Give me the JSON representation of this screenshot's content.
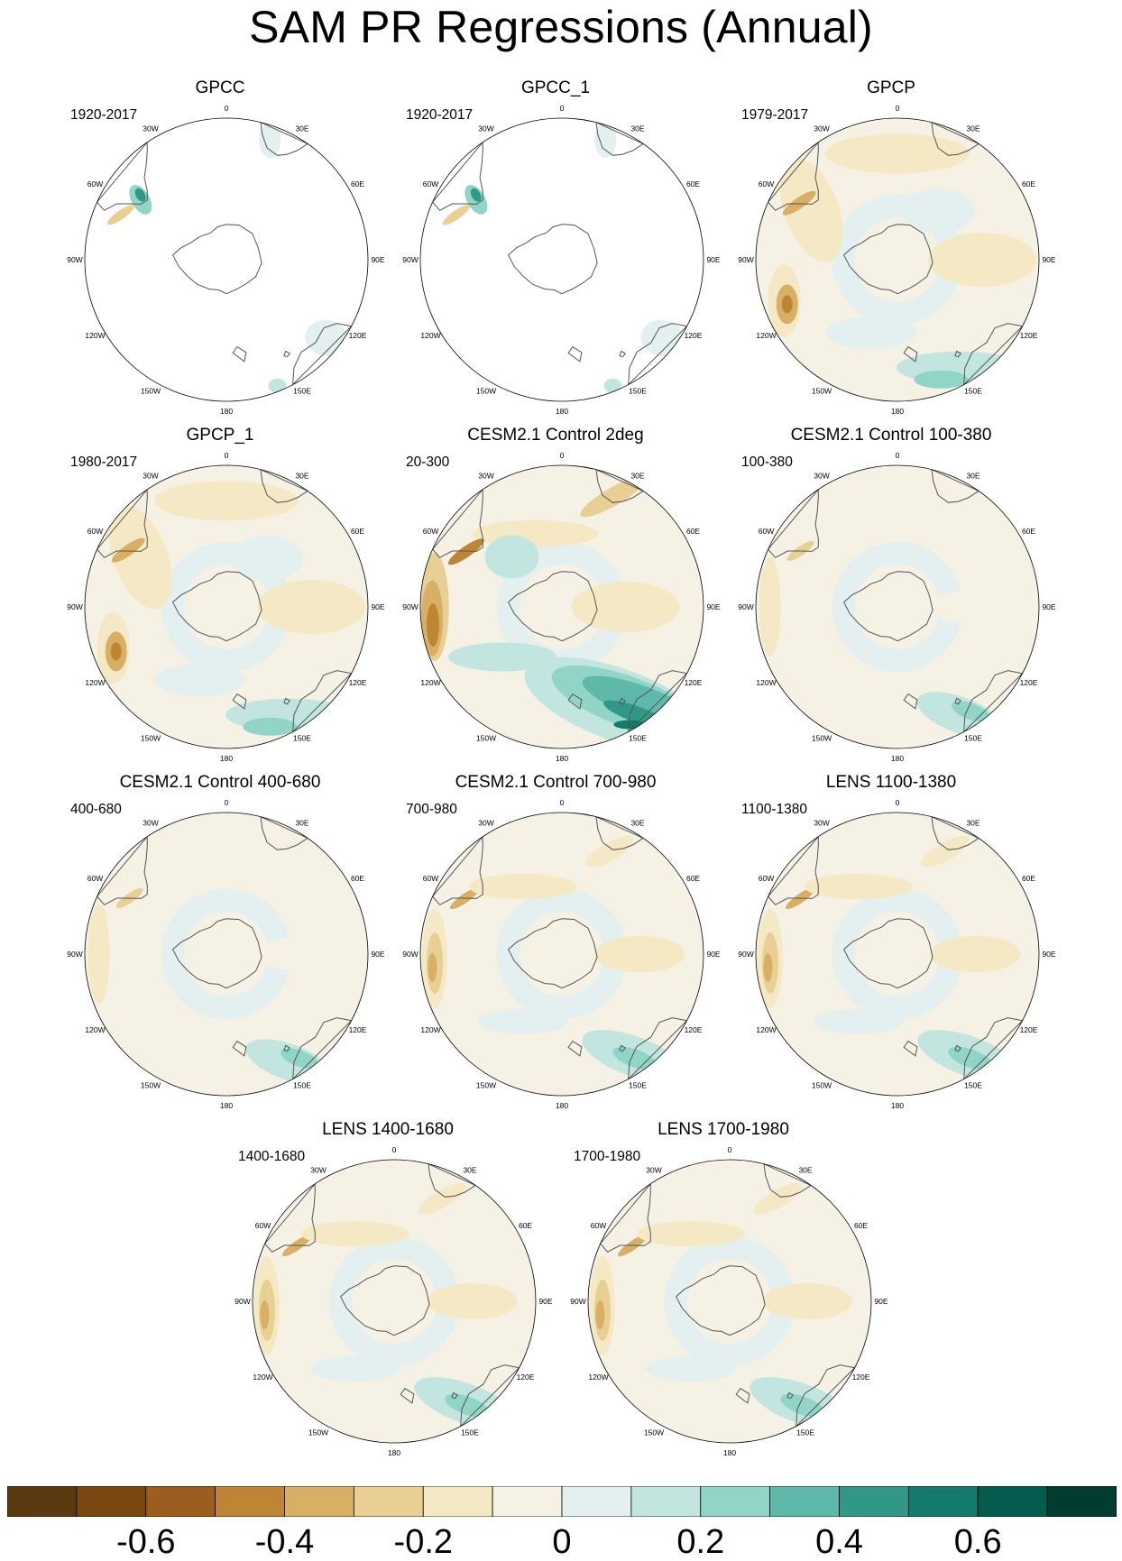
{
  "title": "SAM PR Regressions (Annual)",
  "longitude_labels": [
    "0",
    "30E",
    "60E",
    "90E",
    "120E",
    "150E",
    "180",
    "150W",
    "120W",
    "90W",
    "60W",
    "30W"
  ],
  "panels": [
    {
      "title": "GPCC",
      "period": "1920-2017",
      "coverage": "land",
      "pattern": "obs"
    },
    {
      "title": "GPCC_1",
      "period": "1920-2017",
      "coverage": "land",
      "pattern": "obs"
    },
    {
      "title": "GPCP",
      "period": "1979-2017",
      "coverage": "global",
      "pattern": "gpcp"
    },
    {
      "title": "GPCP_1",
      "period": "1980-2017",
      "coverage": "global",
      "pattern": "gpcp"
    },
    {
      "title": "CESM2.1 Control 2deg",
      "period": "20-300",
      "coverage": "global",
      "pattern": "strong"
    },
    {
      "title": "CESM2.1 Control 100-380",
      "period": "100-380",
      "coverage": "global",
      "pattern": "weak"
    },
    {
      "title": "CESM2.1 Control 400-680",
      "period": "400-680",
      "coverage": "global",
      "pattern": "weak"
    },
    {
      "title": "CESM2.1 Control 700-980",
      "period": "700-980",
      "coverage": "global",
      "pattern": "moderate"
    },
    {
      "title": "LENS 1100-1380",
      "period": "1100-1380",
      "coverage": "global",
      "pattern": "moderate"
    },
    {
      "title": "LENS 1400-1680",
      "period": "1400-1680",
      "coverage": "global",
      "pattern": "moderate"
    },
    {
      "title": "LENS 1700-1980",
      "period": "1700-1980",
      "coverage": "global",
      "pattern": "moderate"
    }
  ],
  "colorbar": {
    "colors": [
      "#5a3a0e",
      "#7a4710",
      "#9c5e1e",
      "#be8535",
      "#d7b065",
      "#e8cf94",
      "#f5e8c5",
      "#f5f1e4",
      "#e3f0ef",
      "#c2e6df",
      "#91d4c8",
      "#5fb9ab",
      "#319787",
      "#137a6c",
      "#045c4e",
      "#003d31"
    ],
    "tick_labels": [
      "-0.6",
      "-0.4",
      "-0.2",
      "0",
      "0.2",
      "0.4",
      "0.6"
    ],
    "tick_values": [
      -0.6,
      -0.4,
      -0.2,
      0,
      0.2,
      0.4,
      0.6
    ],
    "min": -0.8,
    "max": 0.8
  }
}
